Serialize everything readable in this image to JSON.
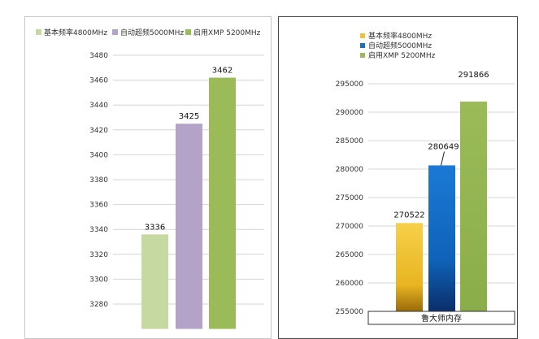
{
  "chart_data": [
    {
      "type": "bar",
      "categories": [
        "基本频率4800MHz",
        "自动超频5000MHz",
        "启用XMP 5200MHz"
      ],
      "values": [
        3336,
        3425,
        3462
      ],
      "value_labels": [
        "3336",
        "3425",
        "3462"
      ],
      "series": [
        {
          "name": "基本频率4800MHz",
          "value": 3336,
          "color": "#c6d9a0"
        },
        {
          "name": "自动超频5000MHz",
          "value": 3425,
          "color": "#b4a3c8"
        },
        {
          "name": "启用XMP 5200MHz",
          "value": 3462,
          "color": "#9bbb59"
        }
      ],
      "legend_placement": "top",
      "ylim": [
        3260,
        3490
      ],
      "yticks": [
        3480,
        3460,
        3440,
        3420,
        3400,
        3380,
        3360,
        3340,
        3320,
        3300,
        3280
      ],
      "ytick_labels": [
        "3480",
        "3460",
        "3440",
        "3420",
        "3400",
        "3380",
        "3360",
        "3340",
        "3320",
        "3300",
        "3280"
      ],
      "grid": true
    },
    {
      "type": "bar",
      "categories": [
        "基本频率4800MHz",
        "自动超频5000MHz",
        "启用XMP 5200MHz"
      ],
      "values": [
        270522,
        280649,
        291866
      ],
      "value_labels": [
        "270522",
        "280649",
        "291866"
      ],
      "series": [
        {
          "name": "基本频率4800MHz",
          "value": 270522,
          "color": "#f2c12e"
        },
        {
          "name": "自动超频5000MHz",
          "value": 280649,
          "color": "#1570c8"
        },
        {
          "name": "启用XMP 5200MHz",
          "value": 291866,
          "color": "#9bbb59"
        }
      ],
      "legend_placement": "top-left",
      "xlabel": "鲁大师内存",
      "ylim": [
        254000,
        297000
      ],
      "yticks": [
        295000,
        290000,
        285000,
        280000,
        275000,
        270000,
        265000,
        260000,
        255000
      ],
      "ytick_labels": [
        "295000",
        "290000",
        "285000",
        "280000",
        "275000",
        "270000",
        "265000",
        "260000",
        "255000"
      ],
      "grid": true
    }
  ]
}
